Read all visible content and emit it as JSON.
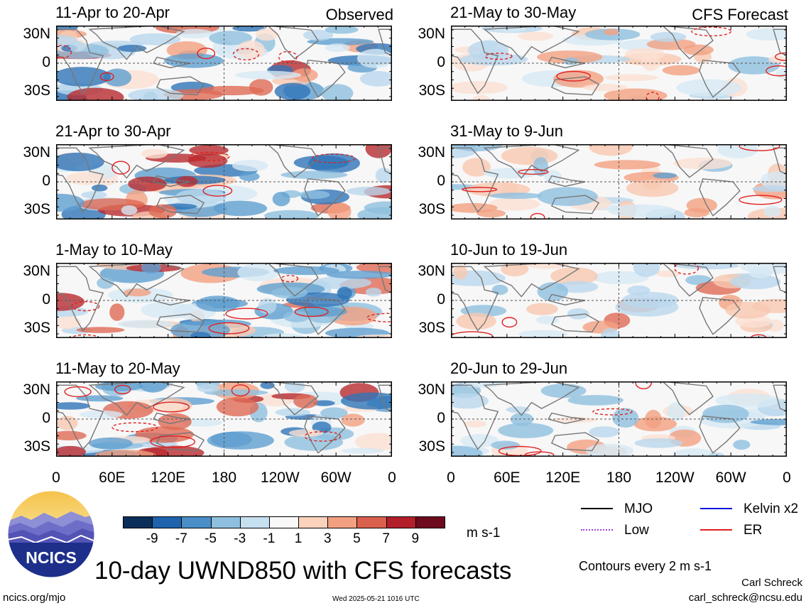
{
  "panels": {
    "left": [
      {
        "title": "11-Apr to 20-Apr",
        "tag": "Observed"
      },
      {
        "title": "21-Apr to 30-Apr",
        "tag": ""
      },
      {
        "title": "1-May to 10-May",
        "tag": ""
      },
      {
        "title": "11-May to 20-May",
        "tag": ""
      }
    ],
    "right": [
      {
        "title": "21-May to 30-May",
        "tag": "CFS Forecast"
      },
      {
        "title": "31-May to 9-Jun",
        "tag": ""
      },
      {
        "title": "10-Jun to 19-Jun",
        "tag": ""
      },
      {
        "title": "20-Jun to 29-Jun",
        "tag": ""
      }
    ]
  },
  "lat_labels": [
    "30N",
    "0",
    "30S"
  ],
  "lon_labels": [
    "0",
    "60E",
    "120E",
    "180",
    "120W",
    "60W",
    "0"
  ],
  "colorbar": {
    "unit": "m s-1",
    "labels": [
      "-9",
      "-7",
      "-5",
      "-3",
      "-1",
      "1",
      "3",
      "5",
      "7",
      "9"
    ],
    "colors": [
      "#0b2e5a",
      "#1f63ad",
      "#4a8ec8",
      "#8fbfdf",
      "#c7e0ef",
      "#f8f8f8",
      "#fbd2bc",
      "#f2a081",
      "#d9604d",
      "#b21f2b",
      "#6e0a1e"
    ]
  },
  "legend": [
    {
      "label": "MJO",
      "color": "#000000",
      "style": "solid"
    },
    {
      "label": "Kelvin x2",
      "color": "#1010e0",
      "style": "solid"
    },
    {
      "label": "Low",
      "color": "#a040e0",
      "style": "dashed"
    },
    {
      "label": "ER",
      "color": "#e02020",
      "style": "solid"
    }
  ],
  "logo": {
    "text": "NCICS"
  },
  "main_title": "10-day UWND850 with CFS forecasts",
  "contour_note": "Contours every 2 m s-1",
  "footer": {
    "site": "ncics.org/mjo",
    "timestamp": "Wed 2025-05-21 1016 UTC",
    "author": "Carl Schreck",
    "email": "carl_schreck@ncsu.edu"
  }
}
